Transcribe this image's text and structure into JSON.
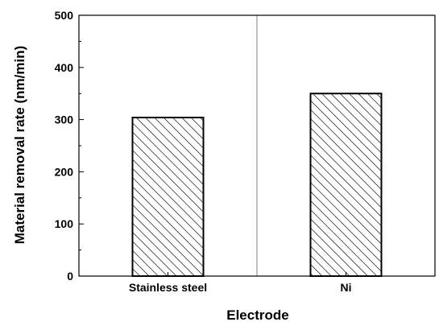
{
  "chart_data": {
    "type": "bar",
    "title": "",
    "xlabel": "Electrode",
    "ylabel": "Material removal rate (nm/min)",
    "categories": [
      "Stainless steel",
      "Ni"
    ],
    "values": [
      304,
      350
    ],
    "ylim": [
      0,
      500
    ],
    "yticks": [
      0,
      100,
      200,
      300,
      400,
      500
    ],
    "grid": "vertical line between categories",
    "bar_fill": "diagonal hatch",
    "colors": {
      "bar_stroke": "#000000",
      "hatch": "#000000",
      "background": "#ffffff",
      "divider": "#808080"
    }
  }
}
